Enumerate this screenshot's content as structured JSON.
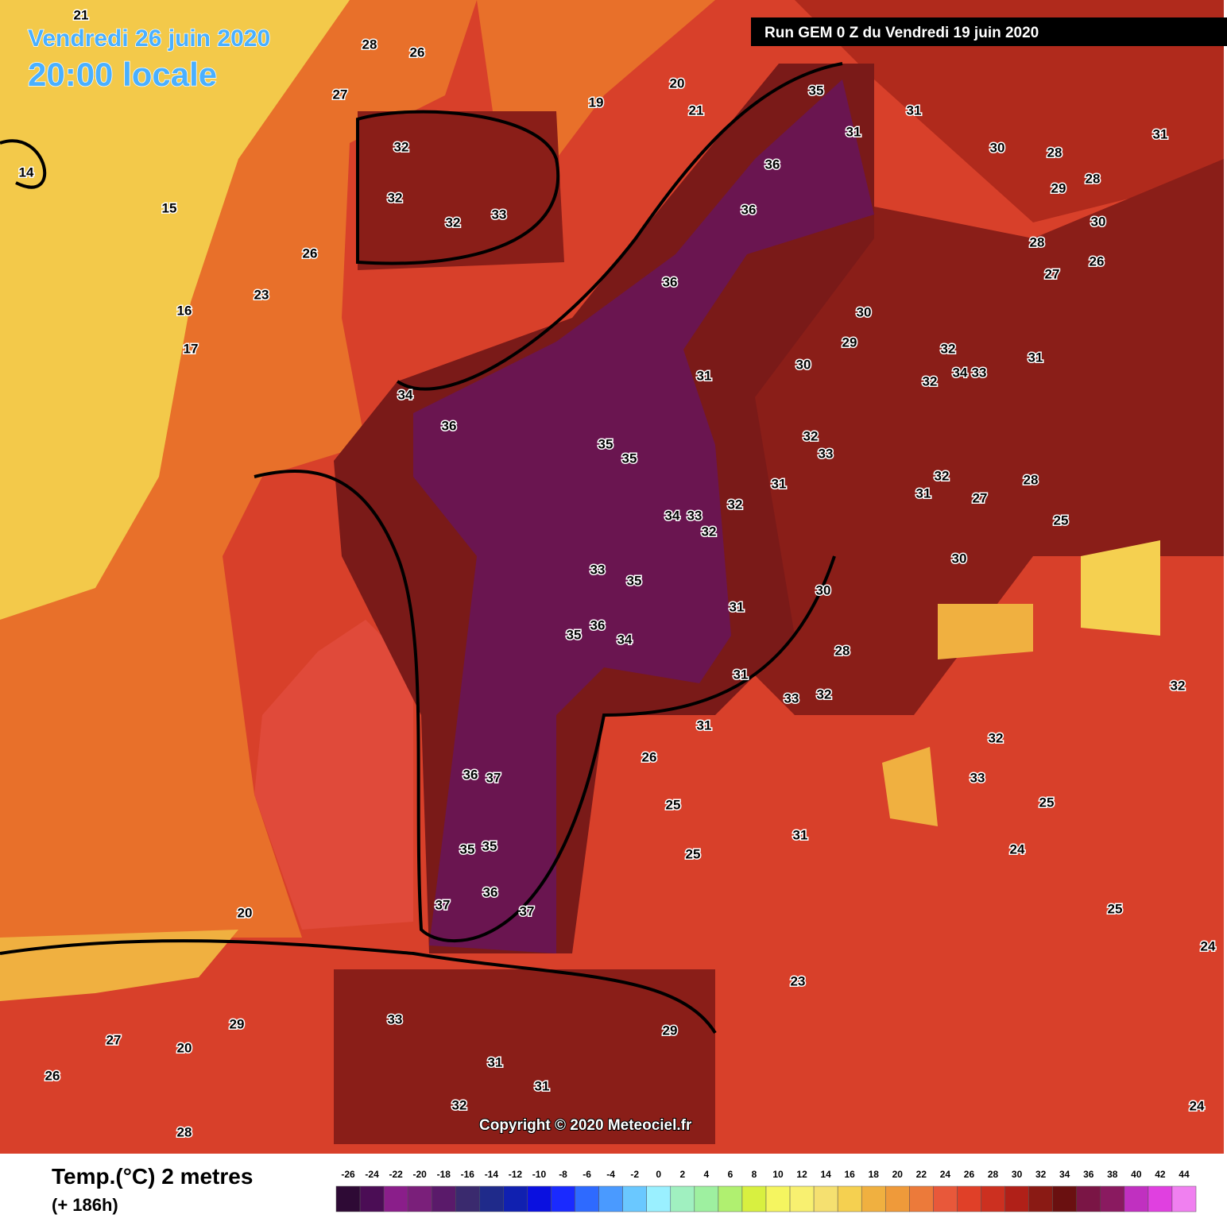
{
  "header": {
    "valid_date": "Vendredi 26 juin 2020",
    "valid_time": "20:00 locale",
    "run": "Run GEM 0 Z du Vendredi 19 juin 2020"
  },
  "map": {
    "labels": [
      "35",
      "31",
      "31",
      "30",
      "28",
      "31",
      "36",
      "36",
      "29",
      "28",
      "30",
      "28",
      "26",
      "27",
      "36",
      "30",
      "29",
      "32",
      "31",
      "32",
      "34",
      "33",
      "31",
      "30",
      "36",
      "34",
      "35",
      "35",
      "32",
      "33",
      "31",
      "32",
      "34",
      "33",
      "32",
      "32",
      "31",
      "27",
      "28",
      "25",
      "33",
      "35",
      "30",
      "30",
      "31",
      "36",
      "35",
      "34",
      "28",
      "31",
      "33",
      "32",
      "31",
      "26",
      "36",
      "37",
      "25",
      "25",
      "35",
      "35",
      "36",
      "37",
      "37",
      "31",
      "32",
      "33",
      "32",
      "25",
      "24",
      "23",
      "20",
      "33",
      "31",
      "31",
      "32",
      "29",
      "27",
      "26",
      "28",
      "29",
      "20",
      "15",
      "16",
      "17",
      "14",
      "21",
      "28",
      "26",
      "27",
      "32",
      "32",
      "32",
      "33",
      "26",
      "23",
      "20",
      "21",
      "19",
      "25",
      "24",
      "24"
    ]
  },
  "copyright": "Copyright © 2020 Meteociel.fr",
  "legend": {
    "title": "Temp.(°C) 2 metres",
    "lead": "(+ 186h)",
    "ticks": [
      -26,
      -24,
      -22,
      -20,
      -18,
      -16,
      -14,
      -12,
      -10,
      -8,
      -6,
      -4,
      -2,
      0,
      2,
      4,
      6,
      8,
      10,
      12,
      14,
      16,
      18,
      20,
      22,
      24,
      26,
      28,
      30,
      32,
      34,
      36,
      38,
      40,
      42,
      44
    ],
    "colors": [
      "#2e0a35",
      "#4b0d55",
      "#8a1e8a",
      "#7a1f7a",
      "#5a1a6a",
      "#3a2a6e",
      "#1f2a8a",
      "#1020b0",
      "#0a10e0",
      "#1a2aff",
      "#2e6aff",
      "#4a9aff",
      "#6ac8ff",
      "#9af0ff",
      "#a0f0c0",
      "#9ef0a0",
      "#b0f070",
      "#d8f040",
      "#f5f560",
      "#f8f070",
      "#f5e070",
      "#f5d050",
      "#f0b040",
      "#ef9a3a",
      "#ec7a3a",
      "#e8583a",
      "#e04028",
      "#cc3020",
      "#b02018",
      "#8a1a14",
      "#6a1010",
      "#7a1545",
      "#8a1a60",
      "#c030c0",
      "#e040e0",
      "#f080f0"
    ]
  }
}
